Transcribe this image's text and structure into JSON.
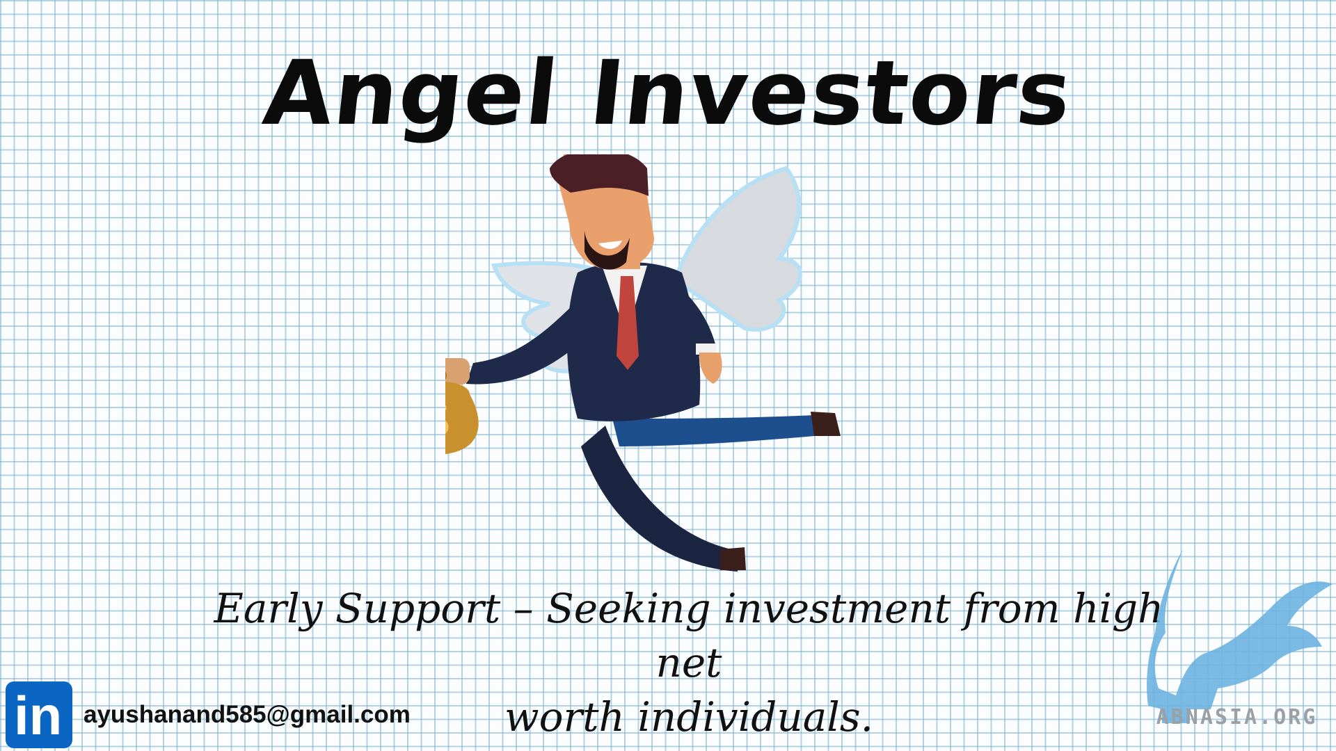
{
  "slide": {
    "title": "Angel Investors",
    "caption_line1": "Early Support – Seeking investment from high net",
    "caption_line2": "worth individuals."
  },
  "illustration": {
    "subject": "winged businessman holding money bag",
    "money_bag_symbol": "$"
  },
  "contact": {
    "icon": "linkedin-logo",
    "email": "ayushanand585@gmail.com"
  },
  "brand": {
    "logo": "griffin-logo",
    "name": "ABNASIA.ORG"
  },
  "colors": {
    "grid_lines": "#78afcd",
    "background": "#fbfdfe",
    "suit": "#1f2a4a",
    "tie": "#c0463d",
    "money_bag": "#c9912e",
    "linkedin_blue": "#0a66c2",
    "brand_logo_blue": "#6bb3e0"
  }
}
